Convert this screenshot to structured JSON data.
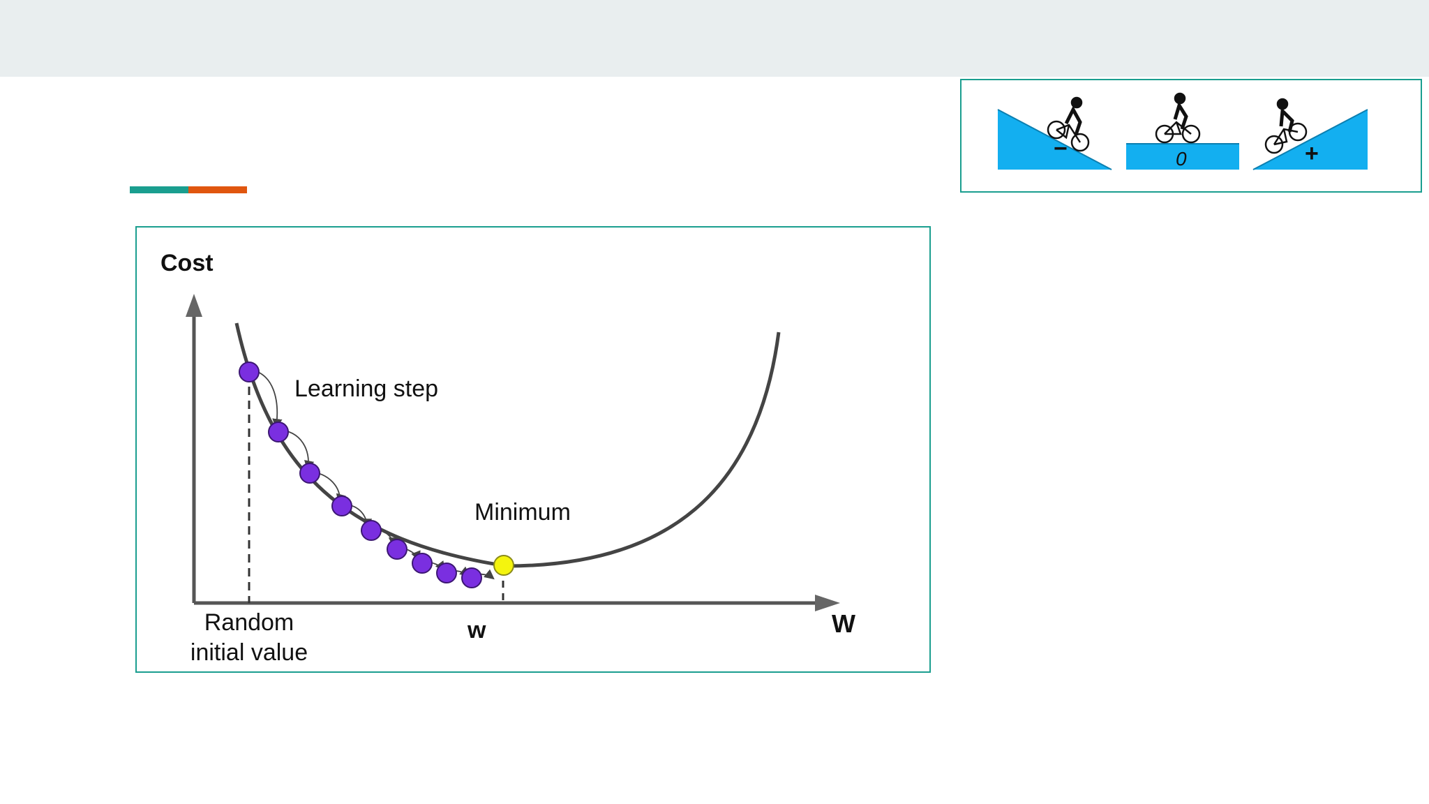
{
  "slide": {
    "accent_colors": {
      "teal": "#1a9e8f",
      "orange": "#e0560f"
    }
  },
  "diagram": {
    "y_axis_label": "Cost",
    "x_axis_label": "W",
    "learning_step_label": "Learning step",
    "minimum_label": "Minimum",
    "w_label": "w",
    "initial_value_label_line1": "Random",
    "initial_value_label_line2": "initial value",
    "colors": {
      "step_point": "#7a2fe0",
      "minimum_point": "#f4f40e",
      "curve": "#444444"
    }
  },
  "slope_panel": {
    "negative_sign": "−",
    "zero_sign": "0",
    "positive_sign": "+",
    "colors": {
      "slope_fill": "#13aff0"
    },
    "icons": [
      "cyclist-downhill-icon",
      "cyclist-flat-icon",
      "cyclist-uphill-icon"
    ]
  }
}
